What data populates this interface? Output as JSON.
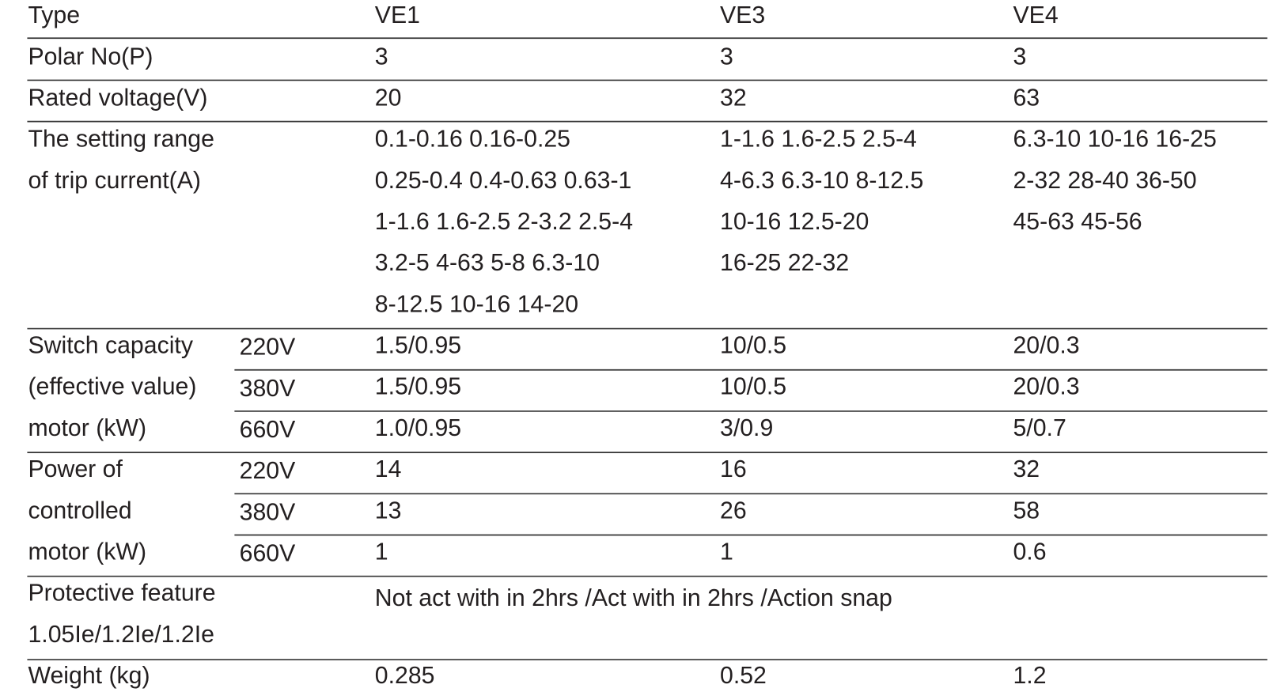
{
  "table": {
    "header": [
      "Type",
      "VE1",
      "VE3",
      "VE4"
    ],
    "polar": {
      "label": "Polar No(P)",
      "values": [
        "3",
        "3",
        "3"
      ]
    },
    "voltage": {
      "label": "Rated voltage(V)",
      "values": [
        "20",
        "32",
        "63"
      ]
    },
    "trip": {
      "label": [
        "The setting range",
        "of trip current(A)"
      ],
      "values": [
        [
          "0.1-0.16 0.16-0.25",
          "0.25-0.4 0.4-0.63 0.63-1",
          "1-1.6 1.6-2.5 2-3.2 2.5-4",
          "3.2-5 4-63 5-8 6.3-10",
          "8-12.5 10-16 14-20"
        ],
        [
          "1-1.6 1.6-2.5 2.5-4",
          "4-6.3 6.3-10 8-12.5",
          "10-16 12.5-20",
          "16-25 22-32"
        ],
        [
          "6.3-10 10-16 16-25",
          "2-32 28-40 36-50",
          "45-63 45-56"
        ]
      ]
    },
    "switch": {
      "label": [
        "Switch capacity",
        "(effective value)",
        "motor (kW)"
      ],
      "subrows": [
        {
          "voltage": "220V",
          "values": [
            "1.5/0.95",
            "10/0.5",
            "20/0.3"
          ]
        },
        {
          "voltage": "380V",
          "values": [
            "1.5/0.95",
            "10/0.5",
            "20/0.3"
          ]
        },
        {
          "voltage": "660V",
          "values": [
            "1.0/0.95",
            "3/0.9",
            "5/0.7"
          ]
        }
      ]
    },
    "power": {
      "label": [
        "Power of",
        "controlled",
        "motor (kW)"
      ],
      "subrows": [
        {
          "voltage": "220V",
          "values": [
            "14",
            "16",
            "32"
          ]
        },
        {
          "voltage": "380V",
          "values": [
            "13",
            "26",
            "58"
          ]
        },
        {
          "voltage": "660V",
          "values": [
            "1",
            "1",
            "0.6"
          ]
        }
      ]
    },
    "protective": {
      "label": [
        "Protective feature",
        "1.05Ie/1.2Ie/1.2Ie"
      ],
      "value": "Not act with in 2hrs /Act with in 2hrs /Action snap"
    },
    "weight": {
      "label": "Weight (kg)",
      "values": [
        "0.285",
        "0.52",
        "1.2"
      ]
    }
  }
}
